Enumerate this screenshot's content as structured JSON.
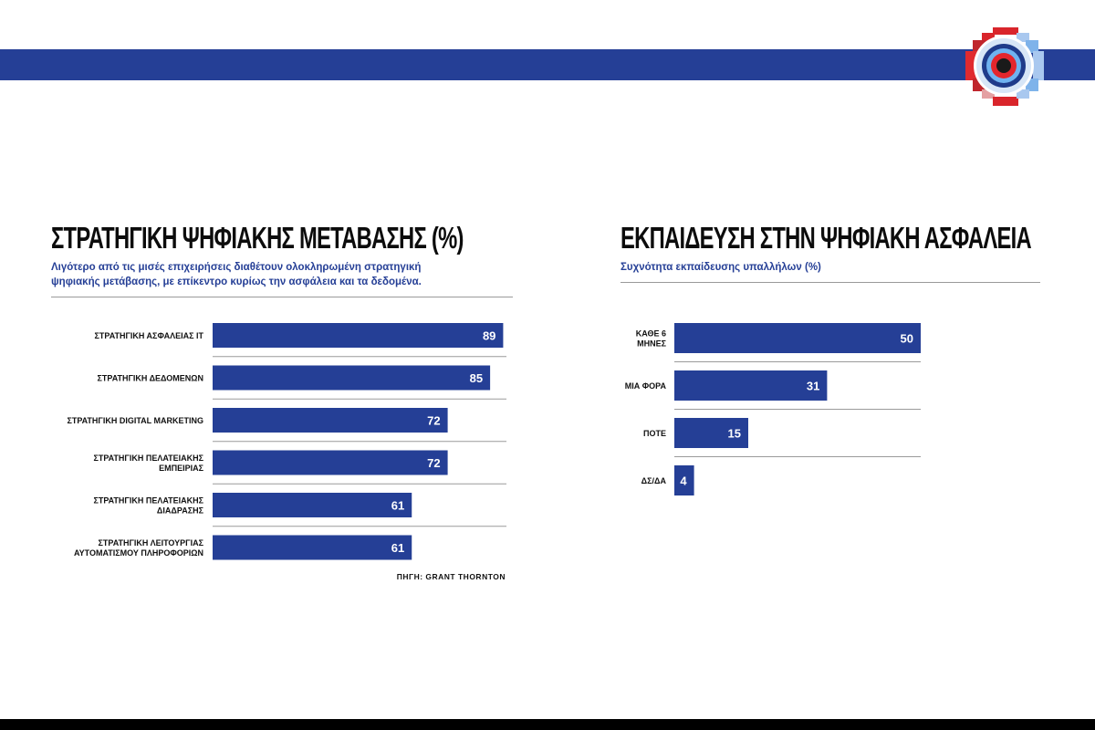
{
  "colors": {
    "accent": "#253f96",
    "band": "#253f96",
    "bottom": "#000000",
    "divider": "#9a9a9a"
  },
  "logo": {
    "icon": "gear-badge-icon"
  },
  "left": {
    "title": "ΣΤΡΑΤΗΓΙΚΗ ΨΗΦΙΑΚΗΣ ΜΕΤΑΒΑΣΗΣ (%)",
    "subtitle": "Λιγότερο από τις μισές επιχειρήσεις διαθέτουν ολοκληρωμένη στρατηγική\nψηφιακής μετάβασης, με επίκεντρο κυρίως την ασφάλεια και τα δεδομένα.",
    "source": "ΠΗΓΗ: GRANT THORNTON"
  },
  "right": {
    "title": "ΕΚΠΑΙΔΕΥΣΗ ΣΤΗΝ ΨΗΦΙΑΚΗ ΑΣΦΑΛΕΙΑ",
    "subtitle": "Συχνότητα εκπαίδευσης υπαλλήλων (%)"
  },
  "chart_data": [
    {
      "type": "bar",
      "orientation": "horizontal",
      "title": "ΣΤΡΑΤΗΓΙΚΗ ΨΗΦΙΑΚΗΣ ΜΕΤΑΒΑΣΗΣ (%)",
      "categories": [
        "ΣΤΡΑΤΗΓΙΚΗ ΑΣΦΑΛΕΙΑΣ IT",
        "ΣΤΡΑΤΗΓΙΚΗ ΔΕΔΟΜΕΝΩΝ",
        "ΣΤΡΑΤΗΓΙΚΗ DIGITAL MARKETING",
        "ΣΤΡΑΤΗΓΙΚΗ ΠΕΛΑΤΕΙΑΚΗΣ\nΕΜΠΕΙΡΙΑΣ",
        "ΣΤΡΑΤΗΓΙΚΗ ΠΕΛΑΤΕΙΑΚΗΣ\nΔΙΑΔΡΑΣΗΣ",
        "ΣΤΡΑΤΗΓΙΚΗ ΛΕΙΤΟΥΡΓΙΑΣ\nΑΥΤΟΜΑΤΙΣΜΟΥ ΠΛΗΡΟΦΟΡΙΩΝ"
      ],
      "values": [
        89,
        85,
        72,
        72,
        61,
        61
      ],
      "xlim": [
        0,
        90
      ],
      "data_labels": true,
      "grid": false
    },
    {
      "type": "bar",
      "orientation": "horizontal",
      "title": "ΕΚΠΑΙΔΕΥΣΗ ΣΤΗΝ ΨΗΦΙΑΚΗ ΑΣΦΑΛΕΙΑ",
      "categories": [
        "ΚΑΘΕ 6\nΜΗΝΕΣ",
        "ΜΙΑ ΦΟΡΑ",
        "ΠΟΤΕ",
        "ΔΣ/ΔΑ"
      ],
      "values": [
        50,
        31,
        15,
        4
      ],
      "xlim": [
        0,
        50
      ],
      "data_labels": true,
      "grid": false
    }
  ]
}
